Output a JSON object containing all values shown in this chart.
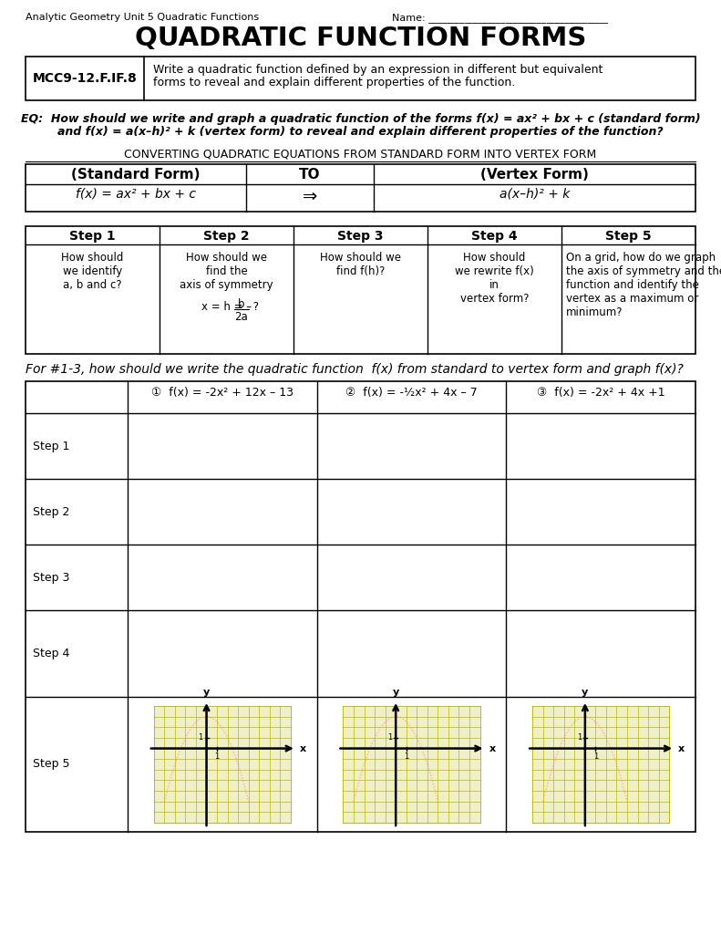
{
  "title": "QUADRATIC FUNCTION FORMS",
  "header_left": "Analytic Geometry Unit 5 Quadratic Functions",
  "header_right": "Name: ___________________________________",
  "standard_label": "MCC9-12.F.IF.8",
  "std_text_line1": "Write a quadratic function defined by an expression in different but equivalent",
  "std_text_line2": "forms to reveal and explain different properties of the function.",
  "eq_line1": "EQ:  How should we write and graph a quadratic function of the forms f(x) = ax² + bx + c (standard form)",
  "eq_line2": "and f(x) = a(x–h)² + k (vertex form) to reveal and explain different properties of the function?",
  "converting_title": "CONVERTING QUADRATIC EQUATIONS FROM STANDARD FORM INTO VERTEX FORM",
  "std_form_label": "(Standard Form)",
  "to_label": "TO",
  "vtx_form_label": "(Vertex Form)",
  "std_form_eq": "f(x) = ax² + bx + c",
  "arrow": "⇒",
  "vtx_form_eq": "a(x–h)² + k",
  "for_text": "For #1-3, how should we write the quadratic function  f(x) from standard to vertex form and graph f(x)?",
  "prob1": "①  f(x) = -2x² + 12x – 13",
  "prob2": "②  f(x) = -½x² + 4x – 7",
  "prob3": "③  f(x) = -2x² + 4x +1",
  "bg_color": "#ffffff",
  "grid_bg_color": "#f0f0c8",
  "grid_line_color": "#b8b800",
  "dot_color": "#ff8888"
}
